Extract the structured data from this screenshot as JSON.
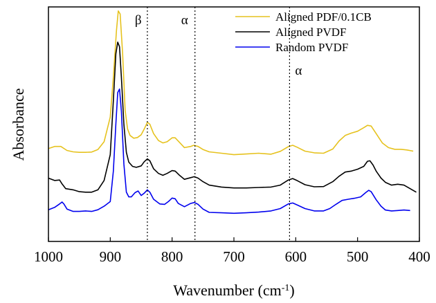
{
  "chart_data": {
    "type": "line",
    "title": "",
    "xlabel": "Wavenumber (cm",
    "xlabel_sup": "-1",
    "xlabel_end": ")",
    "ylabel": "Absorbance",
    "xlim": [
      1000,
      400
    ],
    "x_reversed": true,
    "x_ticks": [
      1000,
      900,
      800,
      700,
      600,
      500,
      400
    ],
    "y_ticks_shown": false,
    "ylim": [
      0,
      1
    ],
    "grid": false,
    "legend_position": "top-right",
    "annotations": [
      {
        "text": "β",
        "x": 840
      },
      {
        "text": "α",
        "x": 763
      },
      {
        "text": "α",
        "x": 610
      }
    ],
    "series": [
      {
        "name": "Aligned PDF/0.1CB",
        "color": "#e6c21e",
        "points": [
          [
            1000,
            0.396
          ],
          [
            990,
            0.405
          ],
          [
            980,
            0.405
          ],
          [
            970,
            0.388
          ],
          [
            960,
            0.382
          ],
          [
            950,
            0.38
          ],
          [
            940,
            0.38
          ],
          [
            930,
            0.381
          ],
          [
            920,
            0.392
          ],
          [
            910,
            0.425
          ],
          [
            900,
            0.53
          ],
          [
            895,
            0.7
          ],
          [
            890,
            0.9
          ],
          [
            887,
            0.983
          ],
          [
            884,
            0.97
          ],
          [
            880,
            0.8
          ],
          [
            876,
            0.56
          ],
          [
            872,
            0.48
          ],
          [
            868,
            0.452
          ],
          [
            862,
            0.44
          ],
          [
            856,
            0.443
          ],
          [
            850,
            0.455
          ],
          [
            845,
            0.48
          ],
          [
            840,
            0.508
          ],
          [
            836,
            0.5
          ],
          [
            830,
            0.46
          ],
          [
            822,
            0.43
          ],
          [
            815,
            0.42
          ],
          [
            808,
            0.425
          ],
          [
            800,
            0.442
          ],
          [
            795,
            0.442
          ],
          [
            790,
            0.428
          ],
          [
            780,
            0.4
          ],
          [
            770,
            0.405
          ],
          [
            765,
            0.41
          ],
          [
            758,
            0.405
          ],
          [
            750,
            0.392
          ],
          [
            740,
            0.382
          ],
          [
            720,
            0.376
          ],
          [
            700,
            0.37
          ],
          [
            680,
            0.373
          ],
          [
            660,
            0.376
          ],
          [
            640,
            0.372
          ],
          [
            625,
            0.384
          ],
          [
            612,
            0.404
          ],
          [
            605,
            0.41
          ],
          [
            598,
            0.402
          ],
          [
            585,
            0.385
          ],
          [
            570,
            0.378
          ],
          [
            555,
            0.376
          ],
          [
            540,
            0.394
          ],
          [
            530,
            0.428
          ],
          [
            520,
            0.452
          ],
          [
            510,
            0.462
          ],
          [
            500,
            0.47
          ],
          [
            490,
            0.485
          ],
          [
            484,
            0.495
          ],
          [
            478,
            0.492
          ],
          [
            470,
            0.46
          ],
          [
            460,
            0.42
          ],
          [
            450,
            0.4
          ],
          [
            440,
            0.393
          ],
          [
            430,
            0.393
          ],
          [
            420,
            0.39
          ],
          [
            410,
            0.385
          ]
        ]
      },
      {
        "name": "Aligned PVDF",
        "color": "#000000",
        "points": [
          [
            1000,
            0.27
          ],
          [
            990,
            0.26
          ],
          [
            982,
            0.262
          ],
          [
            978,
            0.245
          ],
          [
            972,
            0.225
          ],
          [
            960,
            0.22
          ],
          [
            950,
            0.212
          ],
          [
            940,
            0.21
          ],
          [
            930,
            0.21
          ],
          [
            920,
            0.22
          ],
          [
            910,
            0.26
          ],
          [
            900,
            0.37
          ],
          [
            895,
            0.6
          ],
          [
            891,
            0.8
          ],
          [
            888,
            0.85
          ],
          [
            885,
            0.83
          ],
          [
            882,
            0.7
          ],
          [
            878,
            0.5
          ],
          [
            874,
            0.38
          ],
          [
            870,
            0.338
          ],
          [
            864,
            0.32
          ],
          [
            858,
            0.316
          ],
          [
            850,
            0.322
          ],
          [
            845,
            0.34
          ],
          [
            840,
            0.352
          ],
          [
            836,
            0.344
          ],
          [
            830,
            0.31
          ],
          [
            822,
            0.29
          ],
          [
            815,
            0.282
          ],
          [
            808,
            0.29
          ],
          [
            800,
            0.302
          ],
          [
            795,
            0.3
          ],
          [
            788,
            0.282
          ],
          [
            780,
            0.265
          ],
          [
            770,
            0.272
          ],
          [
            764,
            0.276
          ],
          [
            758,
            0.27
          ],
          [
            750,
            0.255
          ],
          [
            740,
            0.24
          ],
          [
            720,
            0.232
          ],
          [
            700,
            0.228
          ],
          [
            680,
            0.228
          ],
          [
            660,
            0.23
          ],
          [
            640,
            0.232
          ],
          [
            625,
            0.24
          ],
          [
            612,
            0.262
          ],
          [
            605,
            0.268
          ],
          [
            598,
            0.26
          ],
          [
            585,
            0.242
          ],
          [
            570,
            0.233
          ],
          [
            555,
            0.234
          ],
          [
            540,
            0.255
          ],
          [
            530,
            0.278
          ],
          [
            520,
            0.296
          ],
          [
            510,
            0.3
          ],
          [
            500,
            0.308
          ],
          [
            490,
            0.32
          ],
          [
            484,
            0.342
          ],
          [
            480,
            0.344
          ],
          [
            475,
            0.326
          ],
          [
            470,
            0.3
          ],
          [
            462,
            0.27
          ],
          [
            455,
            0.252
          ],
          [
            445,
            0.24
          ],
          [
            435,
            0.244
          ],
          [
            425,
            0.24
          ],
          [
            415,
            0.225
          ],
          [
            405,
            0.21
          ]
        ]
      },
      {
        "name": "Random PVDF",
        "color": "#0000ee",
        "points": [
          [
            1000,
            0.135
          ],
          [
            990,
            0.145
          ],
          [
            982,
            0.16
          ],
          [
            978,
            0.168
          ],
          [
            975,
            0.16
          ],
          [
            970,
            0.138
          ],
          [
            960,
            0.128
          ],
          [
            950,
            0.128
          ],
          [
            940,
            0.13
          ],
          [
            930,
            0.128
          ],
          [
            920,
            0.135
          ],
          [
            910,
            0.15
          ],
          [
            900,
            0.17
          ],
          [
            895,
            0.3
          ],
          [
            891,
            0.5
          ],
          [
            888,
            0.635
          ],
          [
            885,
            0.65
          ],
          [
            882,
            0.555
          ],
          [
            878,
            0.33
          ],
          [
            874,
            0.21
          ],
          [
            870,
            0.19
          ],
          [
            866,
            0.19
          ],
          [
            860,
            0.208
          ],
          [
            855,
            0.215
          ],
          [
            850,
            0.196
          ],
          [
            845,
            0.206
          ],
          [
            840,
            0.22
          ],
          [
            836,
            0.21
          ],
          [
            830,
            0.18
          ],
          [
            820,
            0.16
          ],
          [
            812,
            0.158
          ],
          [
            806,
            0.17
          ],
          [
            800,
            0.185
          ],
          [
            795,
            0.182
          ],
          [
            790,
            0.162
          ],
          [
            780,
            0.148
          ],
          [
            770,
            0.162
          ],
          [
            764,
            0.166
          ],
          [
            758,
            0.158
          ],
          [
            750,
            0.138
          ],
          [
            740,
            0.124
          ],
          [
            720,
            0.122
          ],
          [
            700,
            0.12
          ],
          [
            680,
            0.122
          ],
          [
            660,
            0.125
          ],
          [
            640,
            0.13
          ],
          [
            625,
            0.14
          ],
          [
            612,
            0.16
          ],
          [
            605,
            0.164
          ],
          [
            598,
            0.156
          ],
          [
            585,
            0.14
          ],
          [
            570,
            0.13
          ],
          [
            555,
            0.13
          ],
          [
            545,
            0.14
          ],
          [
            535,
            0.158
          ],
          [
            525,
            0.175
          ],
          [
            515,
            0.18
          ],
          [
            505,
            0.184
          ],
          [
            495,
            0.19
          ],
          [
            487,
            0.208
          ],
          [
            482,
            0.218
          ],
          [
            478,
            0.212
          ],
          [
            470,
            0.178
          ],
          [
            462,
            0.15
          ],
          [
            455,
            0.134
          ],
          [
            445,
            0.13
          ],
          [
            435,
            0.132
          ],
          [
            425,
            0.134
          ],
          [
            415,
            0.132
          ]
        ]
      }
    ]
  }
}
